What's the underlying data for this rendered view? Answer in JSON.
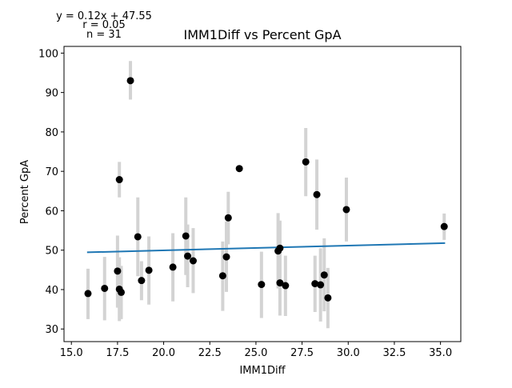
{
  "chart_data": {
    "type": "scatter",
    "title": "IMM1Diff vs Percent GpA",
    "xlabel": "IMM1Diff",
    "ylabel": "Percent GpA",
    "xlim": [
      14.6,
      36.1
    ],
    "ylim": [
      26.8,
      101.7
    ],
    "xticks": [
      15.0,
      17.5,
      20.0,
      22.5,
      25.0,
      27.5,
      30.0,
      32.5,
      35.0
    ],
    "xtick_labels": [
      "15.0",
      "17.5",
      "20.0",
      "22.5",
      "25.0",
      "27.5",
      "30.0",
      "32.5",
      "35.0"
    ],
    "yticks": [
      30,
      40,
      50,
      60,
      70,
      80,
      90,
      100
    ],
    "ytick_labels": [
      "30",
      "40",
      "50",
      "60",
      "70",
      "80",
      "90",
      "100"
    ],
    "grid": false,
    "annotations": {
      "equation": "y = 0.12x + 47.55",
      "r": "r = 0.05",
      "n": "n = 31"
    },
    "regression": {
      "slope": 0.12,
      "intercept": 47.55,
      "x_range": [
        15.85,
        35.25
      ],
      "color": "#1f77b4"
    },
    "colors": {
      "points": "#000000",
      "error_bars": "#d3d3d3",
      "regression": "#1f77b4"
    },
    "points": [
      {
        "x": 15.9,
        "y": 39.0,
        "lo": 32.5,
        "hi": 45.3
      },
      {
        "x": 16.8,
        "y": 40.3,
        "lo": 32.2,
        "hi": 48.3
      },
      {
        "x": 17.5,
        "y": 44.7,
        "lo": 35.4,
        "hi": 53.7
      },
      {
        "x": 17.6,
        "y": 67.9,
        "lo": 63.4,
        "hi": 72.4
      },
      {
        "x": 17.6,
        "y": 40.1,
        "lo": 32.0,
        "hi": 48.2
      },
      {
        "x": 17.7,
        "y": 39.3,
        "lo": 32.5,
        "hi": 46.0
      },
      {
        "x": 18.2,
        "y": 93.0,
        "lo": 88.2,
        "hi": 98.0
      },
      {
        "x": 18.6,
        "y": 53.4,
        "lo": 43.4,
        "hi": 63.4
      },
      {
        "x": 18.8,
        "y": 42.3,
        "lo": 37.3,
        "hi": 47.2
      },
      {
        "x": 19.2,
        "y": 44.9,
        "lo": 36.2,
        "hi": 53.5
      },
      {
        "x": 20.5,
        "y": 45.7,
        "lo": 37.0,
        "hi": 54.3
      },
      {
        "x": 21.2,
        "y": 53.6,
        "lo": 43.7,
        "hi": 63.4
      },
      {
        "x": 21.3,
        "y": 48.5,
        "lo": 40.6,
        "hi": 56.5
      },
      {
        "x": 21.6,
        "y": 47.3,
        "lo": 39.1,
        "hi": 55.6
      },
      {
        "x": 23.2,
        "y": 43.5,
        "lo": 34.6,
        "hi": 52.2
      },
      {
        "x": 23.4,
        "y": 48.3,
        "lo": 39.4,
        "hi": 57.3
      },
      {
        "x": 23.5,
        "y": 58.2,
        "lo": 51.5,
        "hi": 64.8
      },
      {
        "x": 24.1,
        "y": 70.7,
        "lo": 70.2,
        "hi": 71.2
      },
      {
        "x": 25.3,
        "y": 41.3,
        "lo": 32.8,
        "hi": 49.6
      },
      {
        "x": 26.2,
        "y": 49.8,
        "lo": 40.3,
        "hi": 59.4
      },
      {
        "x": 26.3,
        "y": 50.5,
        "lo": 43.3,
        "hi": 57.5
      },
      {
        "x": 26.3,
        "y": 41.7,
        "lo": 33.4,
        "hi": 50.0
      },
      {
        "x": 26.6,
        "y": 41.0,
        "lo": 33.3,
        "hi": 48.6
      },
      {
        "x": 27.7,
        "y": 72.4,
        "lo": 63.7,
        "hi": 81.0
      },
      {
        "x": 28.2,
        "y": 41.5,
        "lo": 34.3,
        "hi": 48.6
      },
      {
        "x": 28.3,
        "y": 64.1,
        "lo": 55.2,
        "hi": 73.0
      },
      {
        "x": 28.5,
        "y": 41.2,
        "lo": 31.9,
        "hi": 50.5
      },
      {
        "x": 28.7,
        "y": 43.7,
        "lo": 34.5,
        "hi": 53.0
      },
      {
        "x": 28.9,
        "y": 37.9,
        "lo": 30.2,
        "hi": 45.5
      },
      {
        "x": 29.9,
        "y": 60.3,
        "lo": 52.2,
        "hi": 68.4
      },
      {
        "x": 35.2,
        "y": 56.0,
        "lo": 52.6,
        "hi": 59.3
      }
    ]
  }
}
